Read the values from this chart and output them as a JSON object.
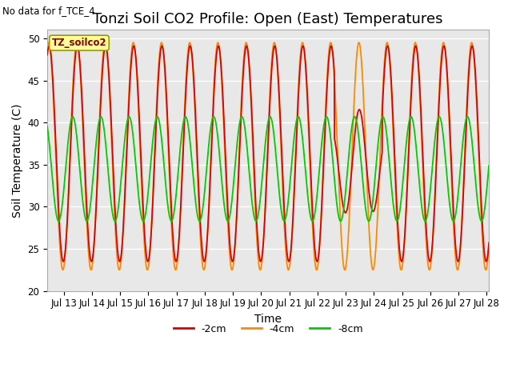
{
  "title": "Tonzi Soil CO2 Profile: Open (East) Temperatures",
  "ylabel": "Soil Temperature (C)",
  "xlabel": "Time",
  "annotation_top_left": "No data for f_TCE_4",
  "legend_box_label": "TZ_soilco2",
  "ylim": [
    20,
    51
  ],
  "yticks": [
    20,
    25,
    30,
    35,
    40,
    45,
    50
  ],
  "xstart_day": 12.42,
  "xend_day": 28.08,
  "xtick_days": [
    13,
    14,
    15,
    16,
    17,
    18,
    19,
    20,
    21,
    22,
    23,
    24,
    25,
    26,
    27,
    28
  ],
  "xtick_labels": [
    "Jul 13",
    "Jul 14",
    "Jul 15",
    "Jul 16",
    "Jul 17",
    "Jul 18",
    "Jul 19",
    "Jul 20",
    "Jul 21",
    "Jul 22",
    "Jul 23",
    "Jul 24",
    "Jul 25",
    "Jul 26",
    "Jul 27",
    "Jul 28"
  ],
  "color_2cm": "#dd0000",
  "color_4cm": "#ff8800",
  "color_8cm": "#00cc00",
  "bg_color": "#e8e8e8",
  "fig_bg_color": "#ffffff",
  "legend_entries": [
    "-2cm",
    "-4cm",
    "-8cm"
  ],
  "title_fontsize": 13,
  "axis_label_fontsize": 10,
  "tick_fontsize": 8.5,
  "linewidth": 1.3,
  "figsize": [
    6.4,
    4.8
  ],
  "dpi": 100
}
